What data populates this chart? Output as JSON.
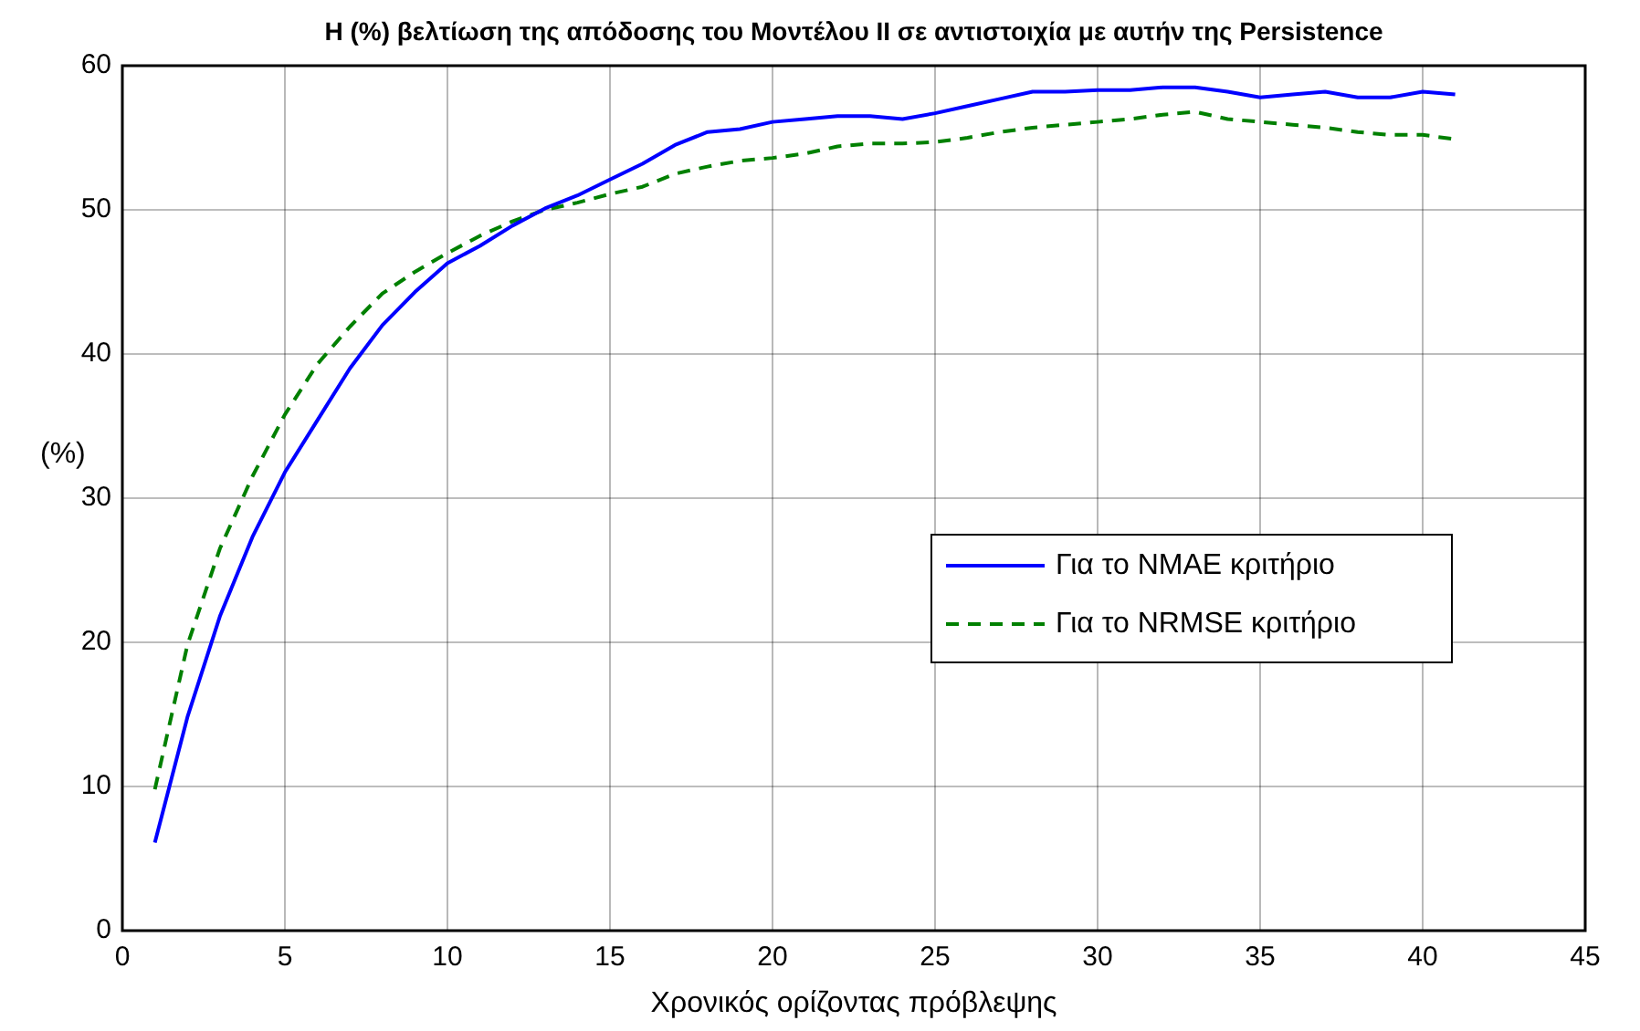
{
  "chart_data": {
    "type": "line",
    "title": "Η (%) βελτίωση της απόδοσης του Μοντέλου ΙΙ σε αντιστοιχία με αυτήν της Persistence",
    "xlabel": "Χρονικός ορίζοντας πρόβλεψης",
    "ylabel": "(%)",
    "x": [
      1,
      2,
      3,
      4,
      5,
      6,
      7,
      8,
      9,
      10,
      11,
      12,
      13,
      14,
      15,
      16,
      17,
      18,
      19,
      20,
      21,
      22,
      23,
      24,
      25,
      26,
      27,
      28,
      29,
      30,
      31,
      32,
      33,
      34,
      35,
      36,
      37,
      38,
      39,
      40,
      41
    ],
    "series": [
      {
        "name": "Για το NMAE κριτήριο",
        "color": "#0000ff",
        "line_style": "solid",
        "values": [
          6.1,
          14.8,
          21.8,
          27.3,
          31.8,
          35.4,
          39,
          42,
          44.3,
          46.3,
          47.5,
          48.9,
          50.1,
          51,
          52.1,
          53.2,
          54.5,
          55.4,
          55.6,
          56.1,
          56.3,
          56.5,
          56.5,
          56.3,
          56.7,
          57.2,
          57.7,
          58.2,
          58.2,
          58.3,
          58.3,
          58.5,
          58.5,
          58.2,
          57.8,
          58,
          58.2,
          57.8,
          57.8,
          58.2,
          58
        ]
      },
      {
        "name": "Για το NRMSE κριτήριο",
        "color": "#008000",
        "line_style": "dashed",
        "values": [
          9.8,
          19.8,
          26.5,
          31.5,
          35.8,
          39.3,
          41.9,
          44.2,
          45.7,
          47,
          48.2,
          49.2,
          50,
          50.5,
          51.1,
          51.6,
          52.5,
          53,
          53.4,
          53.6,
          53.9,
          54.4,
          54.6,
          54.6,
          54.7,
          55,
          55.4,
          55.7,
          55.9,
          56.1,
          56.3,
          56.6,
          56.8,
          56.3,
          56.1,
          55.9,
          55.7,
          55.4,
          55.2,
          55.2,
          54.9
        ]
      }
    ],
    "xlim": [
      0,
      45
    ],
    "xticks": [
      0,
      5,
      10,
      15,
      20,
      25,
      30,
      35,
      40,
      45
    ],
    "ylim": [
      0,
      60
    ],
    "yticks": [
      0,
      10,
      20,
      30,
      40,
      50,
      60
    ],
    "grid": true,
    "legend": "right",
    "marker": "none"
  }
}
